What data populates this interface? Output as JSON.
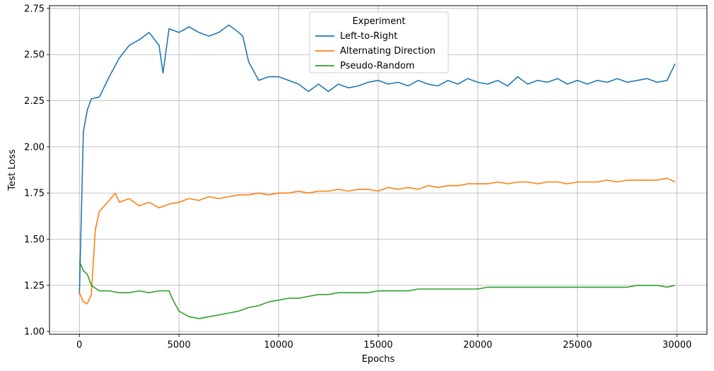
{
  "chart_data": {
    "type": "line",
    "title": "",
    "xlabel": "Epochs",
    "ylabel": "Test Loss",
    "xlim": [
      -1500,
      31500
    ],
    "ylim": [
      0.985,
      2.765
    ],
    "xticks": [
      0,
      5000,
      10000,
      15000,
      20000,
      25000,
      30000
    ],
    "xtick_labels": [
      "0",
      "5000",
      "10000",
      "15000",
      "20000",
      "25000",
      "30000"
    ],
    "yticks": [
      1.0,
      1.25,
      1.5,
      1.75,
      2.0,
      2.25,
      2.5,
      2.75
    ],
    "ytick_labels": [
      "1.00",
      "1.25",
      "1.50",
      "1.75",
      "2.00",
      "2.25",
      "2.50",
      "2.75"
    ],
    "grid": true,
    "legend": {
      "title": "Experiment",
      "placement": "top-center"
    },
    "series": [
      {
        "name": "Left-to-Right",
        "color": "#1f77b4",
        "points": [
          [
            0,
            1.2
          ],
          [
            200,
            2.08
          ],
          [
            400,
            2.2
          ],
          [
            600,
            2.26
          ],
          [
            1000,
            2.27
          ],
          [
            1500,
            2.38
          ],
          [
            2000,
            2.48
          ],
          [
            2500,
            2.55
          ],
          [
            3000,
            2.58
          ],
          [
            3500,
            2.62
          ],
          [
            4000,
            2.55
          ],
          [
            4200,
            2.4
          ],
          [
            4500,
            2.64
          ],
          [
            5000,
            2.62
          ],
          [
            5500,
            2.65
          ],
          [
            6000,
            2.62
          ],
          [
            6500,
            2.6
          ],
          [
            7000,
            2.62
          ],
          [
            7500,
            2.66
          ],
          [
            8000,
            2.62
          ],
          [
            8200,
            2.6
          ],
          [
            8500,
            2.46
          ],
          [
            9000,
            2.36
          ],
          [
            9500,
            2.38
          ],
          [
            10000,
            2.38
          ],
          [
            10500,
            2.36
          ],
          [
            11000,
            2.34
          ],
          [
            11500,
            2.3
          ],
          [
            12000,
            2.34
          ],
          [
            12500,
            2.3
          ],
          [
            13000,
            2.34
          ],
          [
            13500,
            2.32
          ],
          [
            14000,
            2.33
          ],
          [
            14500,
            2.35
          ],
          [
            15000,
            2.36
          ],
          [
            15500,
            2.34
          ],
          [
            16000,
            2.35
          ],
          [
            16500,
            2.33
          ],
          [
            17000,
            2.36
          ],
          [
            17500,
            2.34
          ],
          [
            18000,
            2.33
          ],
          [
            18500,
            2.36
          ],
          [
            19000,
            2.34
          ],
          [
            19500,
            2.37
          ],
          [
            20000,
            2.35
          ],
          [
            20500,
            2.34
          ],
          [
            21000,
            2.36
          ],
          [
            21500,
            2.33
          ],
          [
            22000,
            2.38
          ],
          [
            22500,
            2.34
          ],
          [
            23000,
            2.36
          ],
          [
            23500,
            2.35
          ],
          [
            24000,
            2.37
          ],
          [
            24500,
            2.34
          ],
          [
            25000,
            2.36
          ],
          [
            25500,
            2.34
          ],
          [
            26000,
            2.36
          ],
          [
            26500,
            2.35
          ],
          [
            27000,
            2.37
          ],
          [
            27500,
            2.35
          ],
          [
            28000,
            2.36
          ],
          [
            28500,
            2.37
          ],
          [
            29000,
            2.35
          ],
          [
            29500,
            2.36
          ],
          [
            29900,
            2.45
          ]
        ]
      },
      {
        "name": "Alternating Direction",
        "color": "#ff7f0e",
        "points": [
          [
            0,
            1.21
          ],
          [
            200,
            1.16
          ],
          [
            400,
            1.15
          ],
          [
            600,
            1.2
          ],
          [
            800,
            1.55
          ],
          [
            1000,
            1.65
          ],
          [
            1500,
            1.71
          ],
          [
            1800,
            1.75
          ],
          [
            2000,
            1.7
          ],
          [
            2500,
            1.72
          ],
          [
            3000,
            1.68
          ],
          [
            3500,
            1.7
          ],
          [
            4000,
            1.67
          ],
          [
            4500,
            1.69
          ],
          [
            5000,
            1.7
          ],
          [
            5500,
            1.72
          ],
          [
            6000,
            1.71
          ],
          [
            6500,
            1.73
          ],
          [
            7000,
            1.72
          ],
          [
            7500,
            1.73
          ],
          [
            8000,
            1.74
          ],
          [
            8500,
            1.74
          ],
          [
            9000,
            1.75
          ],
          [
            9500,
            1.74
          ],
          [
            10000,
            1.75
          ],
          [
            10500,
            1.75
          ],
          [
            11000,
            1.76
          ],
          [
            11500,
            1.75
          ],
          [
            12000,
            1.76
          ],
          [
            12500,
            1.76
          ],
          [
            13000,
            1.77
          ],
          [
            13500,
            1.76
          ],
          [
            14000,
            1.77
          ],
          [
            14500,
            1.77
          ],
          [
            15000,
            1.76
          ],
          [
            15500,
            1.78
          ],
          [
            16000,
            1.77
          ],
          [
            16500,
            1.78
          ],
          [
            17000,
            1.77
          ],
          [
            17500,
            1.79
          ],
          [
            18000,
            1.78
          ],
          [
            18500,
            1.79
          ],
          [
            19000,
            1.79
          ],
          [
            19500,
            1.8
          ],
          [
            20000,
            1.8
          ],
          [
            20500,
            1.8
          ],
          [
            21000,
            1.81
          ],
          [
            21500,
            1.8
          ],
          [
            22000,
            1.81
          ],
          [
            22500,
            1.81
          ],
          [
            23000,
            1.8
          ],
          [
            23500,
            1.81
          ],
          [
            24000,
            1.81
          ],
          [
            24500,
            1.8
          ],
          [
            25000,
            1.81
          ],
          [
            25500,
            1.81
          ],
          [
            26000,
            1.81
          ],
          [
            26500,
            1.82
          ],
          [
            27000,
            1.81
          ],
          [
            27500,
            1.82
          ],
          [
            28000,
            1.82
          ],
          [
            28500,
            1.82
          ],
          [
            29000,
            1.82
          ],
          [
            29500,
            1.83
          ],
          [
            29900,
            1.81
          ]
        ]
      },
      {
        "name": "Pseudo-Random",
        "color": "#2ca02c",
        "points": [
          [
            0,
            1.38
          ],
          [
            200,
            1.33
          ],
          [
            400,
            1.31
          ],
          [
            600,
            1.25
          ],
          [
            1000,
            1.22
          ],
          [
            1500,
            1.22
          ],
          [
            2000,
            1.21
          ],
          [
            2500,
            1.21
          ],
          [
            3000,
            1.22
          ],
          [
            3500,
            1.21
          ],
          [
            4000,
            1.22
          ],
          [
            4500,
            1.22
          ],
          [
            4700,
            1.17
          ],
          [
            5000,
            1.11
          ],
          [
            5500,
            1.08
          ],
          [
            6000,
            1.07
          ],
          [
            6500,
            1.08
          ],
          [
            7000,
            1.09
          ],
          [
            7500,
            1.1
          ],
          [
            8000,
            1.11
          ],
          [
            8500,
            1.13
          ],
          [
            9000,
            1.14
          ],
          [
            9500,
            1.16
          ],
          [
            10000,
            1.17
          ],
          [
            10500,
            1.18
          ],
          [
            11000,
            1.18
          ],
          [
            11500,
            1.19
          ],
          [
            12000,
            1.2
          ],
          [
            12500,
            1.2
          ],
          [
            13000,
            1.21
          ],
          [
            13500,
            1.21
          ],
          [
            14000,
            1.21
          ],
          [
            14500,
            1.21
          ],
          [
            15000,
            1.22
          ],
          [
            15500,
            1.22
          ],
          [
            16000,
            1.22
          ],
          [
            16500,
            1.22
          ],
          [
            17000,
            1.23
          ],
          [
            17500,
            1.23
          ],
          [
            18000,
            1.23
          ],
          [
            18500,
            1.23
          ],
          [
            19000,
            1.23
          ],
          [
            19500,
            1.23
          ],
          [
            20000,
            1.23
          ],
          [
            20500,
            1.24
          ],
          [
            21000,
            1.24
          ],
          [
            21500,
            1.24
          ],
          [
            22000,
            1.24
          ],
          [
            22500,
            1.24
          ],
          [
            23000,
            1.24
          ],
          [
            23500,
            1.24
          ],
          [
            24000,
            1.24
          ],
          [
            24500,
            1.24
          ],
          [
            25000,
            1.24
          ],
          [
            25500,
            1.24
          ],
          [
            26000,
            1.24
          ],
          [
            26500,
            1.24
          ],
          [
            27000,
            1.24
          ],
          [
            27500,
            1.24
          ],
          [
            28000,
            1.25
          ],
          [
            28500,
            1.25
          ],
          [
            29000,
            1.25
          ],
          [
            29500,
            1.24
          ],
          [
            29900,
            1.25
          ]
        ]
      }
    ]
  }
}
